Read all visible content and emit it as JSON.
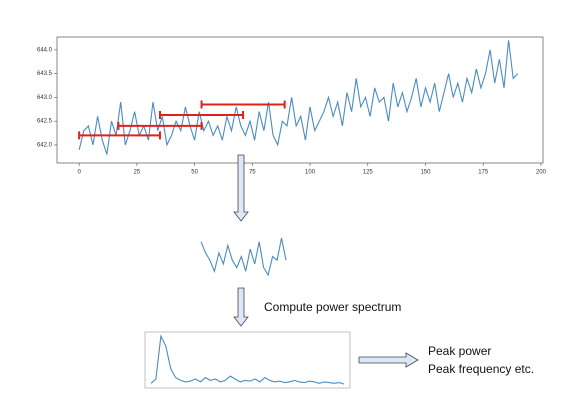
{
  "main_plot": {
    "type": "line",
    "color": "#4a8cc2",
    "x": [
      0,
      2,
      4,
      6,
      8,
      10,
      12,
      14,
      16,
      18,
      20,
      22,
      24,
      26,
      28,
      30,
      32,
      34,
      36,
      38,
      40,
      42,
      44,
      46,
      48,
      50,
      52,
      54,
      56,
      58,
      60,
      62,
      64,
      66,
      68,
      70,
      72,
      74,
      76,
      78,
      80,
      82,
      84,
      86,
      88,
      90,
      92,
      94,
      96,
      98,
      100,
      102,
      104,
      106,
      108,
      110,
      112,
      114,
      116,
      118,
      120,
      122,
      124,
      126,
      128,
      130,
      132,
      134,
      136,
      138,
      140,
      142,
      144,
      146,
      148,
      150,
      152,
      154,
      156,
      158,
      160,
      162,
      164,
      166,
      168,
      170,
      172,
      174,
      176,
      178,
      180,
      182,
      184,
      186,
      188,
      190
    ],
    "values": [
      641.9,
      642.3,
      642.4,
      642.0,
      642.6,
      642.1,
      641.8,
      642.5,
      642.2,
      642.9,
      642.0,
      642.3,
      642.7,
      642.2,
      642.4,
      642.1,
      642.9,
      642.3,
      642.6,
      642.0,
      642.2,
      642.5,
      642.3,
      642.8,
      642.4,
      642.1,
      642.7,
      642.3,
      642.5,
      642.2,
      642.4,
      642.1,
      642.6,
      642.3,
      642.8,
      642.4,
      642.2,
      642.5,
      642.1,
      642.7,
      642.3,
      642.9,
      642.2,
      642.0,
      642.5,
      642.4,
      643.0,
      642.4,
      642.6,
      642.1,
      642.8,
      642.3,
      642.5,
      642.7,
      643.0,
      642.6,
      642.9,
      642.4,
      643.1,
      642.7,
      643.4,
      642.8,
      643.0,
      642.6,
      643.2,
      642.9,
      643.0,
      642.5,
      643.3,
      642.8,
      643.1,
      642.7,
      643.0,
      643.4,
      642.8,
      643.2,
      642.9,
      643.3,
      642.7,
      643.1,
      643.5,
      643.0,
      643.3,
      642.9,
      643.4,
      643.1,
      643.6,
      643.2,
      643.5,
      644.0,
      643.3,
      643.8,
      643.2,
      644.2,
      643.4,
      643.5
    ],
    "xlim": [
      -9.6,
      200.9
    ],
    "ylim": [
      641.62,
      644.27
    ],
    "xticks": [
      0,
      25,
      50,
      75,
      100,
      125,
      150,
      175,
      200
    ],
    "yticks": [
      {
        "value": 642,
        "label": "642.0"
      },
      642.5,
      {
        "value": 643,
        "label": "643.0"
      },
      643.5,
      {
        "value": 644,
        "label": "644.0"
      }
    ],
    "windows": {
      "color": "#e0201c",
      "items": [
        {
          "start": 0,
          "end": 35,
          "y": 642.2
        },
        {
          "start": 17,
          "end": 53,
          "y": 642.4
        },
        {
          "start": 35,
          "end": 71,
          "y": 642.63
        },
        {
          "start": 53,
          "end": 89,
          "y": 642.85
        }
      ]
    }
  },
  "segment_plot": {
    "type": "line",
    "color": "#4a8cc2",
    "values": [
      642.9,
      642.6,
      642.4,
      642.1,
      642.6,
      642.3,
      642.8,
      642.4,
      642.2,
      642.5,
      642.1,
      642.7,
      642.3,
      642.9,
      642.2,
      642.0,
      642.5,
      642.4,
      643.0,
      642.4
    ]
  },
  "spectrum_plot": {
    "type": "line",
    "color": "#4a8cc2",
    "values": [
      0.2,
      0.5,
      3.5,
      2.8,
      1.2,
      0.6,
      0.4,
      0.3,
      0.35,
      0.5,
      0.3,
      0.6,
      0.4,
      0.5,
      0.3,
      0.4,
      0.7,
      0.5,
      0.3,
      0.4,
      0.35,
      0.5,
      0.3,
      0.6,
      0.4,
      0.3,
      0.35,
      0.25,
      0.3,
      0.4,
      0.3,
      0.25,
      0.35,
      0.3,
      0.2,
      0.3,
      0.25,
      0.2,
      0.25,
      0.15
    ]
  },
  "labels": {
    "step": "Compute power spectrum",
    "outputs": [
      "Peak power",
      "Peak frequency etc."
    ]
  }
}
